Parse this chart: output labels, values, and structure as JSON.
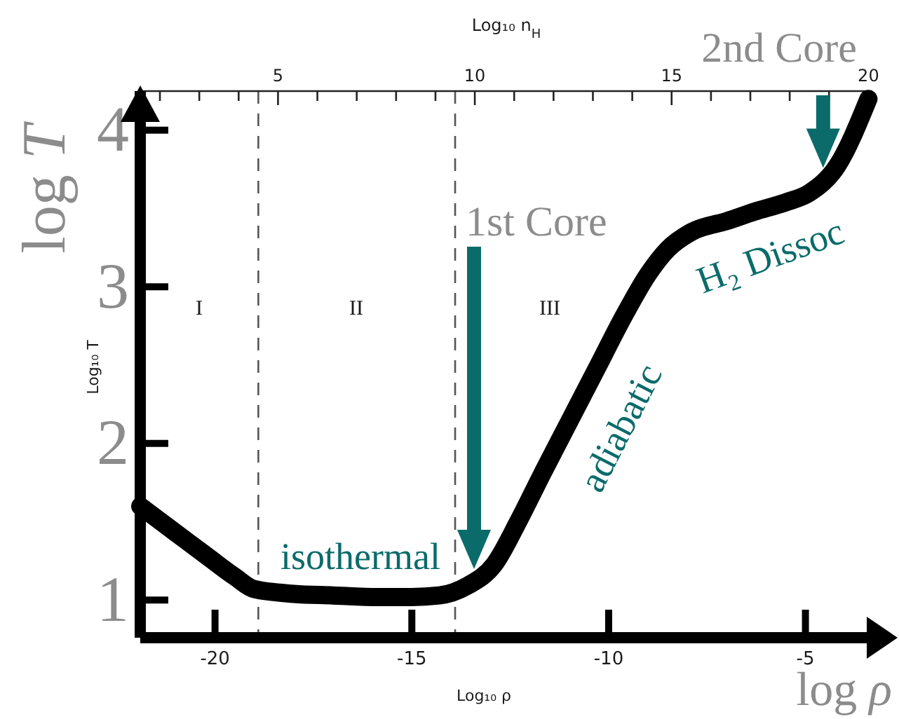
{
  "chart_data": {
    "type": "line",
    "xlabel": "log ρ",
    "ylabel": "log T",
    "x2label": "Log₁₀ n$_{H}$",
    "x": [
      -21.9,
      -21.0,
      -20.2,
      -19.5,
      -19.0,
      -18.0,
      -17.0,
      -16.0,
      -15.0,
      -14.3,
      -13.6,
      -12.9,
      -12.3,
      -11.7,
      -11.0,
      -10.3,
      -9.6,
      -9.0,
      -8.5,
      -7.9,
      -7.0,
      -6.3,
      -5.5,
      -4.9,
      -4.2,
      -3.4
    ],
    "series": [
      {
        "color": "#000000",
        "values": [
          1.6,
          1.43,
          1.28,
          1.15,
          1.07,
          1.04,
          1.03,
          1.02,
          1.02,
          1.03,
          1.09,
          1.23,
          1.5,
          1.8,
          2.14,
          2.48,
          2.82,
          3.08,
          3.24,
          3.35,
          3.42,
          3.48,
          3.54,
          3.6,
          3.77,
          4.2
        ]
      }
    ],
    "line_style": "solid",
    "xlim": [
      -21.9,
      -3.3
    ],
    "xticks": [
      -20,
      -15,
      -10,
      -5
    ],
    "x2lim": [
      1.5,
      20.1
    ],
    "x2ticks": [
      {
        "value": 2,
        "label": null
      },
      {
        "value": 3,
        "label": null
      },
      {
        "value": 4,
        "label": null
      },
      5,
      {
        "value": 6,
        "label": null
      },
      {
        "value": 7,
        "label": null
      },
      {
        "value": 8,
        "label": null
      },
      {
        "value": 9,
        "label": null
      },
      10,
      {
        "value": 11,
        "label": null
      },
      {
        "value": 12,
        "label": null
      },
      {
        "value": 13,
        "label": null
      },
      {
        "value": 14,
        "label": null
      },
      15,
      {
        "value": 16,
        "label": null
      },
      {
        "value": 17,
        "label": null
      },
      {
        "value": 18,
        "label": null
      },
      {
        "value": 19,
        "label": null
      },
      20
    ],
    "ylim": [
      0.76,
      4.25
    ],
    "yticks": [
      1,
      2,
      3,
      4
    ],
    "ref_lines": [
      {
        "axis": "x",
        "value": -18.9,
        "color": "#555555",
        "line_style": "dashed"
      },
      {
        "axis": "x",
        "value": -13.9,
        "color": "#555555",
        "line_style": "dashed"
      }
    ],
    "annotations": [
      "Log₁₀ ρ",
      "Log₁₀ T",
      "I",
      "II",
      "III",
      "isothermal",
      "adiabatic",
      "H₂ Dissoc",
      "1st Core",
      {
        "text": "2nd Core",
        "x": -4.55,
        "y": 3.68
      }
    ]
  }
}
